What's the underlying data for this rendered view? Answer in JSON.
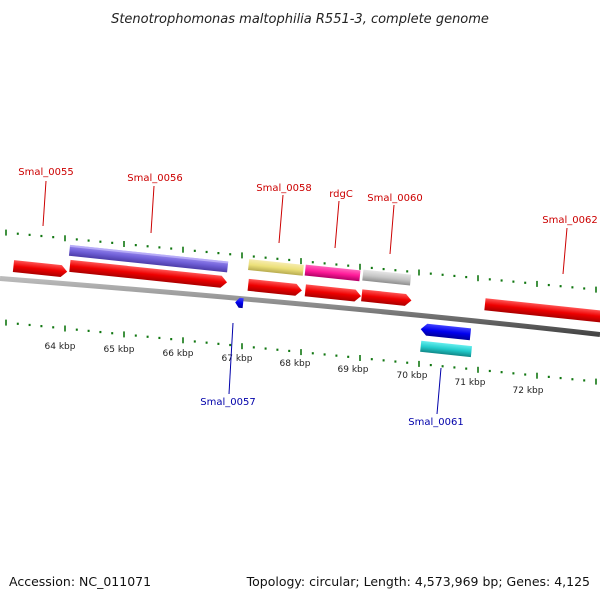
{
  "title": "Stenotrophomonas maltophilia R551-3, complete genome",
  "footer": {
    "accession": "Accession: NC_011071",
    "summary": "Topology: circular; Length: 4,573,969 bp; Genes: 4,125"
  },
  "colors": {
    "red_gene": "#ee1111",
    "blue_gene": "#1111dd",
    "label_red": "#cc0000",
    "label_blue": "#0000aa",
    "tick_green": "#117711",
    "backbone": "#777777"
  },
  "kbp_labels": [
    "64 kbp",
    "65 kbp",
    "66 kbp",
    "67 kbp",
    "68 kbp",
    "69 kbp",
    "70 kbp",
    "71 kbp",
    "72 kbp"
  ],
  "genes": [
    {
      "name": "Smal_0055",
      "color": "red",
      "strand": "forward"
    },
    {
      "name": "Smal_0056",
      "color": "red",
      "strand": "forward"
    },
    {
      "name": "Smal_0057",
      "color": "blue",
      "strand": "reverse"
    },
    {
      "name": "Smal_0058",
      "color": "red",
      "strand": "forward"
    },
    {
      "name": "rdgC",
      "color": "red",
      "strand": "forward"
    },
    {
      "name": "Smal_0060",
      "color": "red",
      "strand": "forward"
    },
    {
      "name": "Smal_0061",
      "color": "blue",
      "strand": "reverse"
    },
    {
      "name": "Smal_0062",
      "color": "red",
      "strand": "forward"
    }
  ],
  "feature_bars": [
    {
      "name": "purple-bar",
      "color": "#7a66d9"
    },
    {
      "name": "yellow-bar",
      "color": "#eee08a"
    },
    {
      "name": "magenta-bar",
      "color": "#ff1a99"
    },
    {
      "name": "gray-bar",
      "color": "#c8c8c8"
    },
    {
      "name": "cyan-bar",
      "color": "#22cccc"
    }
  ]
}
